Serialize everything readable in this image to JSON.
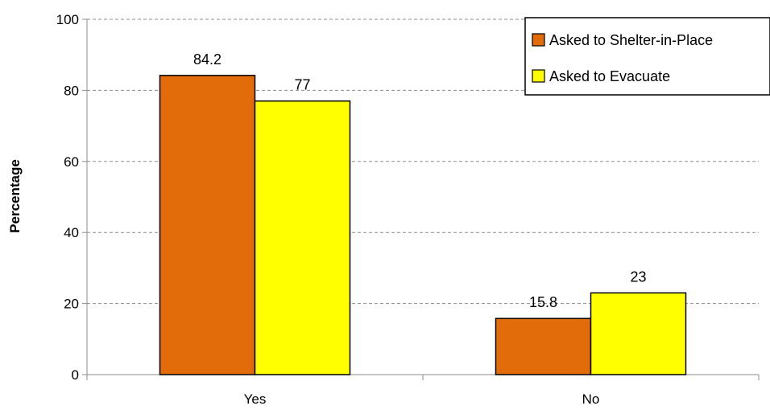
{
  "chart_data": {
    "type": "bar",
    "title": "",
    "xlabel": "",
    "ylabel": "Percentage",
    "categories": [
      "Yes",
      "No"
    ],
    "series": [
      {
        "name": "Asked to Shelter-in-Place",
        "values": [
          84.2,
          15.8
        ],
        "labels": [
          "84.2",
          "15.8"
        ],
        "color": "#e36c0a"
      },
      {
        "name": "Asked to Evacuate",
        "values": [
          77,
          23
        ],
        "labels": [
          "77",
          "23"
        ],
        "color": "#ffff00"
      }
    ],
    "ylim": [
      0,
      100
    ],
    "yticks": [
      0,
      20,
      40,
      60,
      80,
      100
    ],
    "ytick_labels": [
      "0",
      "20",
      "40",
      "60",
      "80",
      "100"
    ],
    "grid": true,
    "legend_position": "top-right"
  }
}
